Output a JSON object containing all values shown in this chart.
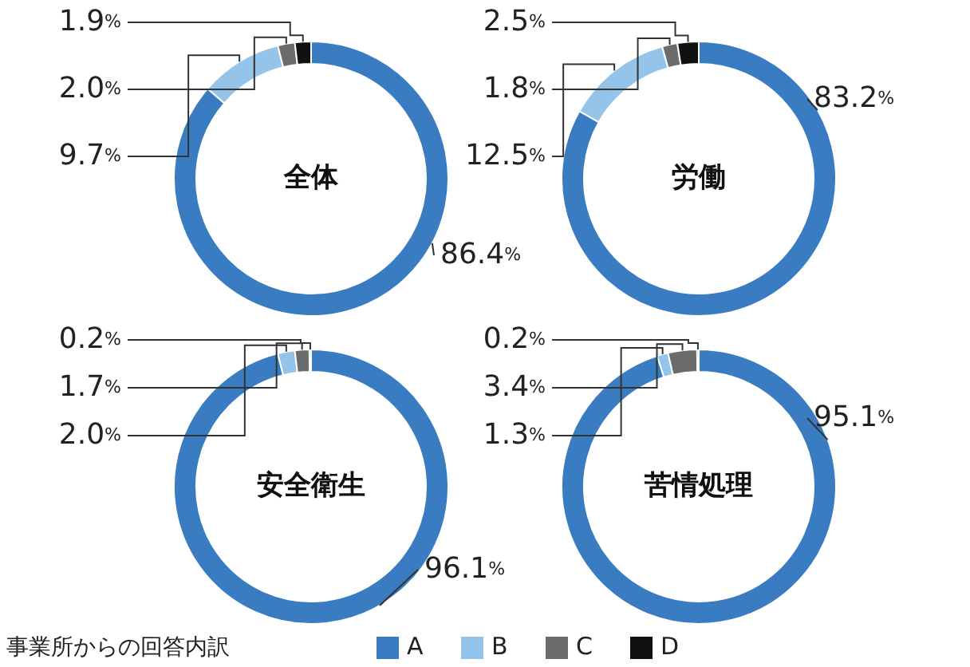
{
  "chart_data": [
    {
      "type": "donut",
      "title": "全体",
      "categories": [
        "A",
        "B",
        "C",
        "D"
      ],
      "values": [
        86.4,
        9.7,
        2.0,
        1.9
      ],
      "value_labels": [
        "86.4%",
        "9.7%",
        "2.0%",
        "1.9%"
      ],
      "colors": [
        "#3a7cc2",
        "#94c4ea",
        "#6b6b6b",
        "#111111"
      ],
      "legend": "bottom",
      "legend_title": "事業所からの回答内訳"
    },
    {
      "type": "donut",
      "title": "労働",
      "categories": [
        null,
        null,
        null,
        null
      ],
      "values": [
        83.2,
        12.5,
        1.8,
        2.5
      ],
      "value_labels": [
        "83.2%",
        "12.5%",
        "1.8%",
        "2.5%"
      ],
      "colors": [
        "#3a7cc2",
        "#94c4ea",
        "#6b6b6b",
        "#111111"
      ]
    },
    {
      "type": "donut",
      "title": "安全衛生",
      "categories": [
        null,
        null,
        null,
        null
      ],
      "values": [
        96.1,
        2.0,
        1.7,
        0.2
      ],
      "value_labels": [
        "96.1%",
        "2.0%",
        "1.7%",
        "0.2%"
      ],
      "colors": [
        "#3a7cc2",
        "#94c4ea",
        "#6b6b6b",
        "#111111"
      ]
    },
    {
      "type": "donut",
      "title": "苦情処理",
      "categories": [
        null,
        null,
        null,
        null
      ],
      "values": [
        95.1,
        1.3,
        3.4,
        0.2
      ],
      "value_labels": [
        "95.1%",
        "1.3%",
        "3.4%",
        "0.2%"
      ],
      "colors": [
        "#3a7cc2",
        "#94c4ea",
        "#6b6b6b",
        "#111111"
      ]
    }
  ]
}
